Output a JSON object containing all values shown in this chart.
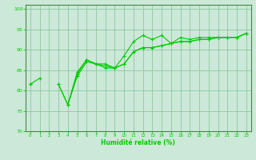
{
  "xlabel": "Humidité relative (%)",
  "xlim": [
    -0.5,
    23.5
  ],
  "ylim": [
    70,
    101
  ],
  "yticks": [
    70,
    75,
    80,
    85,
    90,
    95,
    100
  ],
  "xticks": [
    0,
    1,
    2,
    3,
    4,
    5,
    6,
    7,
    8,
    9,
    10,
    11,
    12,
    13,
    14,
    15,
    16,
    17,
    18,
    19,
    20,
    21,
    22,
    23
  ],
  "background_color": "#cce8d8",
  "grid_color": "#88c8a0",
  "line_color": "#00cc00",
  "series": [
    [
      81.5,
      83.0,
      null,
      81.5,
      76.5,
      84.0,
      87.5,
      86.5,
      86.5,
      85.5,
      88.5,
      92.0,
      93.5,
      92.5,
      93.5,
      91.5,
      93.0,
      92.5,
      93.0,
      93.0,
      93.0,
      93.0,
      93.0,
      94.0
    ],
    [
      81.5,
      null,
      null,
      81.5,
      76.5,
      83.5,
      87.0,
      86.5,
      85.5,
      85.5,
      86.5,
      89.5,
      90.5,
      90.5,
      91.0,
      91.5,
      92.0,
      92.0,
      92.5,
      92.5,
      93.0,
      93.0,
      93.0,
      94.0
    ],
    [
      81.5,
      null,
      null,
      null,
      76.5,
      84.5,
      87.5,
      86.5,
      86.0,
      85.5,
      86.5,
      89.5,
      90.5,
      90.5,
      91.0,
      91.5,
      92.0,
      92.0,
      92.5,
      92.5,
      93.0,
      93.0,
      93.0,
      94.0
    ]
  ]
}
